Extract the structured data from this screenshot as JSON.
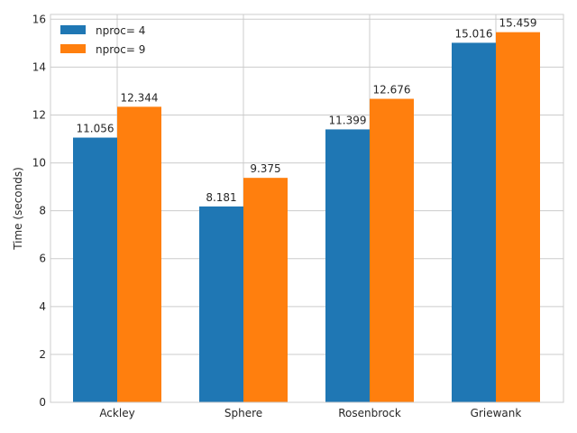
{
  "chart_data": {
    "type": "bar",
    "title": "",
    "xlabel": "",
    "ylabel": "Time (seconds)",
    "categories": [
      "Ackley",
      "Sphere",
      "Rosenbrock",
      "Griewank"
    ],
    "series": [
      {
        "name": "nproc= 4",
        "values": [
          11.056,
          8.181,
          11.399,
          15.016
        ],
        "labels": [
          "11.056",
          "8.181",
          "11.399",
          "15.016"
        ],
        "color": "#1f77b4"
      },
      {
        "name": "nproc= 9",
        "values": [
          12.344,
          9.375,
          12.676,
          15.459
        ],
        "labels": [
          "12.344",
          "9.375",
          "12.676",
          "15.459"
        ],
        "color": "#ff7f0e"
      }
    ],
    "ylim": [
      0,
      16.2
    ],
    "yticks": [
      0,
      2,
      4,
      6,
      8,
      10,
      12,
      14,
      16
    ],
    "ytick_labels": [
      "0",
      "2",
      "4",
      "6",
      "8",
      "10",
      "12",
      "14",
      "16"
    ],
    "grid": true,
    "legend_position": "top-left"
  }
}
